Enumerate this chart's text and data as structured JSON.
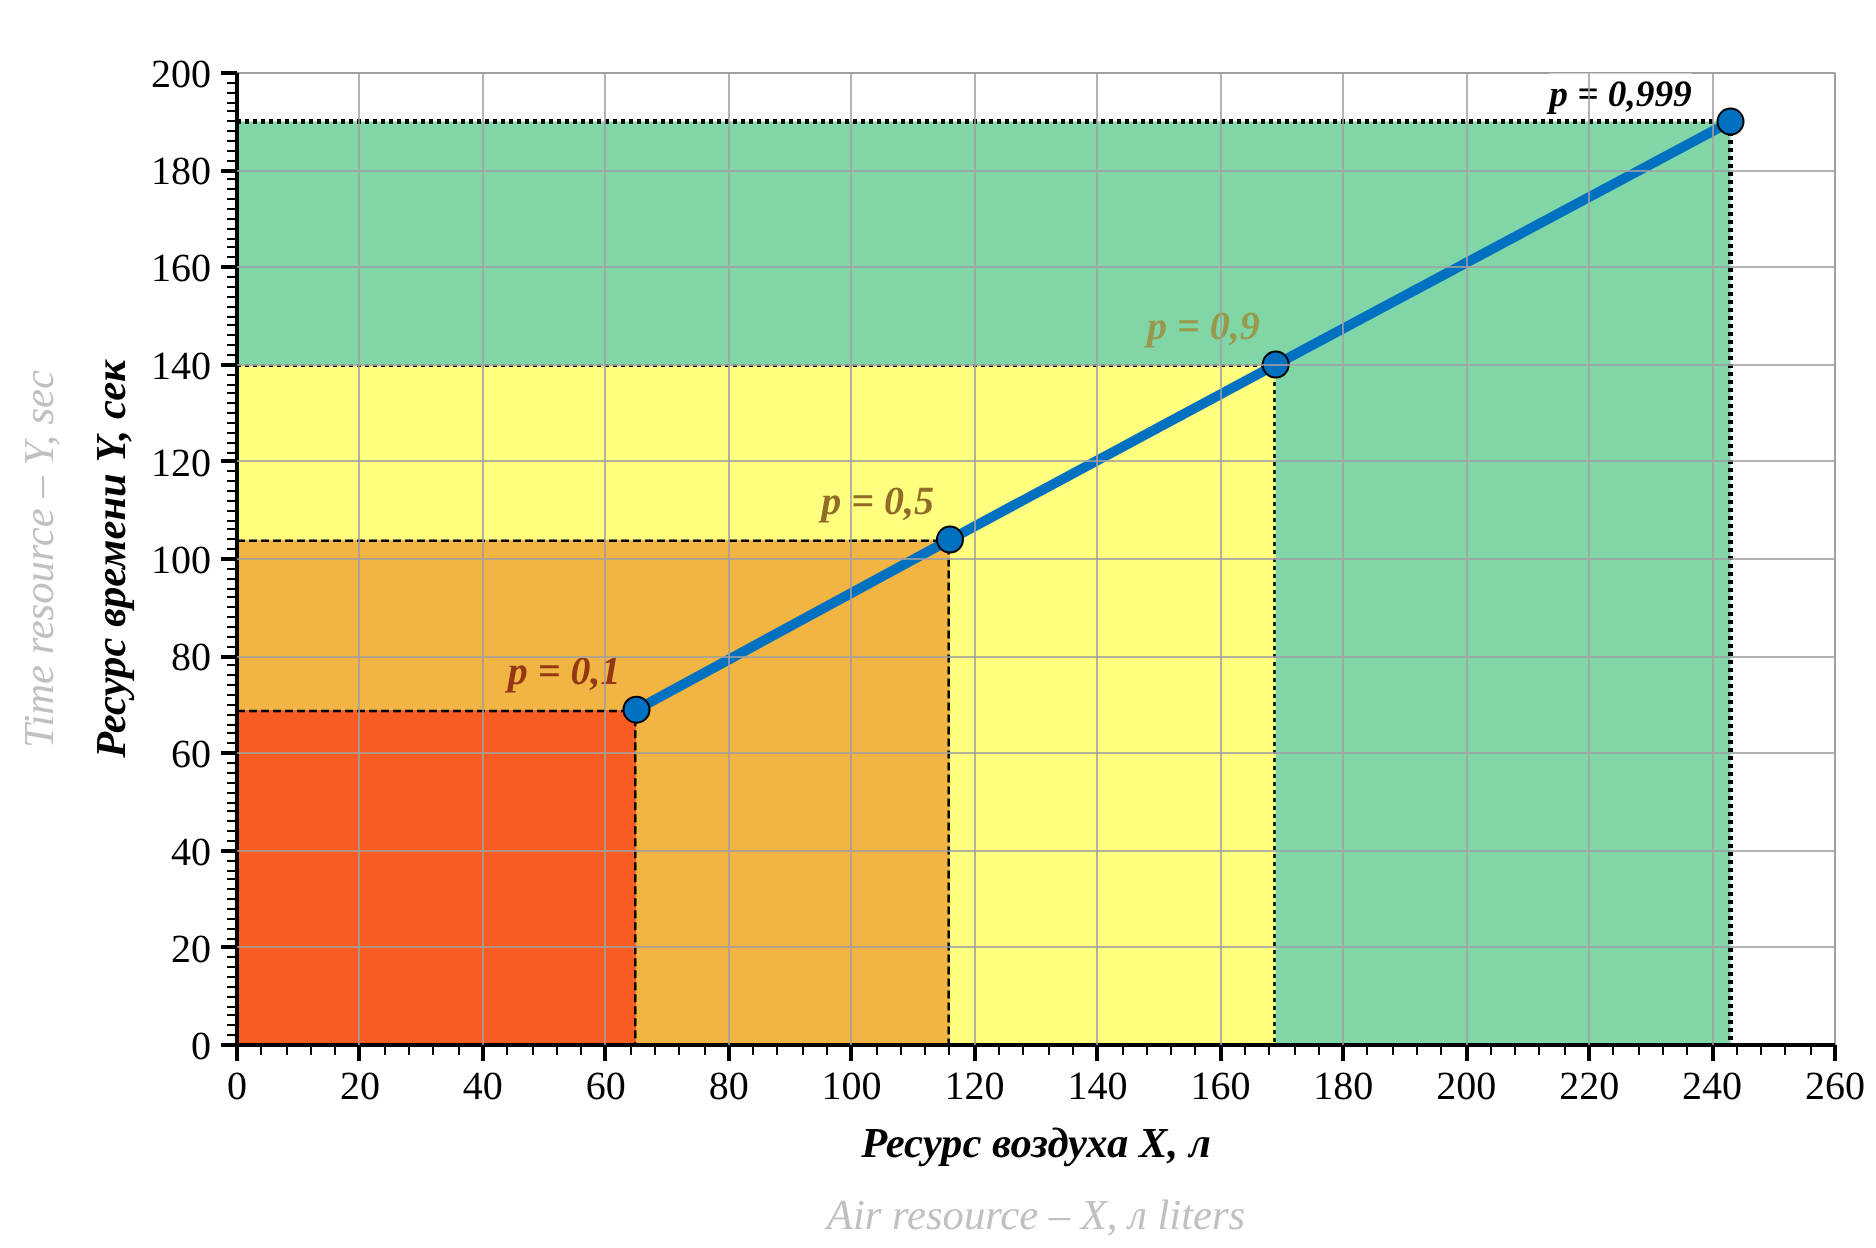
{
  "chart_data": {
    "type": "line",
    "stacked": true,
    "xlabel": "Ресурс воздуха X, л\nAir resource – X, л liters",
    "ylabel": "Ресурс времени Y, сек\nTime resource – Y, sec",
    "xlim": [
      0,
      260
    ],
    "xticks": [
      0,
      20,
      40,
      60,
      80,
      100,
      120,
      140,
      160,
      180,
      200,
      220,
      240,
      260
    ],
    "ylim": [
      0,
      200
    ],
    "yticks": [
      0,
      20,
      40,
      60,
      80,
      100,
      120,
      140,
      160,
      180,
      200
    ],
    "grid": true,
    "line_style": "solid",
    "x": [
      0,
      65,
      65,
      116,
      116,
      169,
      169,
      243,
      243
    ],
    "series": [
      {
        "type": "area",
        "color": "#f75c23",
        "values": [
          69,
          69,
          0,
          0,
          0,
          0,
          0,
          0,
          0
        ],
        "line_style": "dashed"
      },
      {
        "type": "area",
        "color": "#f2b544",
        "values": [
          35,
          35,
          104,
          104,
          0,
          0,
          0,
          0,
          0
        ],
        "line_style": "dashed"
      },
      {
        "type": "area",
        "color": "#ffff80",
        "values": [
          36,
          36,
          36,
          36,
          140,
          140,
          0,
          0,
          0
        ],
        "line_style": "dotted"
      },
      {
        "type": "area",
        "color": "#80d6a6",
        "values": [
          50,
          50,
          50,
          50,
          50,
          50,
          190,
          190,
          0
        ],
        "line_style": "dotted"
      },
      {
        "color": "#0070c0",
        "marker": "circle",
        "x": [
          65,
          116,
          169,
          243
        ],
        "values": [
          69,
          104,
          140,
          190
        ]
      }
    ],
    "annotations": [
      "p = 0,1",
      "p = 0,5",
      "p = 0,9",
      "p = 0,999"
    ]
  }
}
